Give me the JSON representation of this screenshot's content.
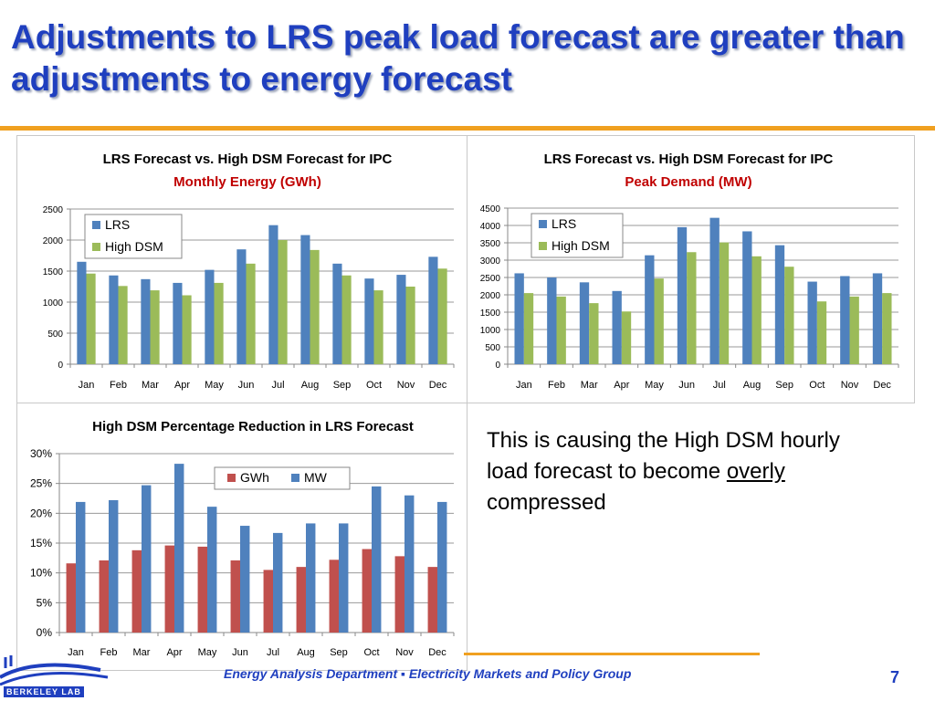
{
  "slide": {
    "title": "Adjustments to LRS peak load forecast are greater than adjustments to energy forecast",
    "body_prefix": "This is causing the High DSM hourly load forecast to become ",
    "body_underlined": "overly",
    "body_suffix": " compressed",
    "footer": "Energy Analysis Department  ▪  Electricity Markets and Policy Group",
    "page_number": "7",
    "logo_text": "BERKELEY LAB",
    "colors": {
      "title": "#1f3fbf",
      "accent": "#f0a020",
      "blue_series": "#4f81bd",
      "green_series": "#9bbb59",
      "red_series": "#c0504d"
    }
  },
  "chart_data": [
    {
      "type": "bar",
      "title": "LRS Forecast vs. High DSM Forecast for IPC",
      "subtitle": "Monthly Energy (GWh)",
      "categories": [
        "Jan",
        "Feb",
        "Mar",
        "Apr",
        "May",
        "Jun",
        "Jul",
        "Aug",
        "Sep",
        "Oct",
        "Nov",
        "Dec"
      ],
      "series": [
        {
          "name": "LRS",
          "color": "#4f81bd",
          "values": [
            1650,
            1430,
            1370,
            1310,
            1520,
            1850,
            2240,
            2080,
            1620,
            1380,
            1440,
            1730
          ]
        },
        {
          "name": "High DSM",
          "color": "#9bbb59",
          "values": [
            1460,
            1260,
            1190,
            1110,
            1310,
            1620,
            2000,
            1840,
            1430,
            1190,
            1250,
            1540
          ]
        }
      ],
      "ylim": [
        0,
        2500
      ],
      "yticks": [
        "0",
        "500",
        "1000",
        "1500",
        "2000",
        "2500"
      ],
      "legend": "top-left",
      "xlabel": "",
      "ylabel": ""
    },
    {
      "type": "bar",
      "title": "LRS Forecast vs. High DSM Forecast for IPC",
      "subtitle": "Peak Demand (MW)",
      "categories": [
        "Jan",
        "Feb",
        "Mar",
        "Apr",
        "May",
        "Jun",
        "Jul",
        "Aug",
        "Sep",
        "Oct",
        "Nov",
        "Dec"
      ],
      "series": [
        {
          "name": "LRS",
          "color": "#4f81bd",
          "values": [
            2620,
            2500,
            2360,
            2110,
            3140,
            3950,
            4220,
            3830,
            3430,
            2380,
            2540,
            2620
          ]
        },
        {
          "name": "High DSM",
          "color": "#9bbb59",
          "values": [
            2050,
            1950,
            1760,
            1520,
            2470,
            3230,
            3510,
            3110,
            2810,
            1810,
            1950,
            2050
          ]
        }
      ],
      "ylim": [
        0,
        4500
      ],
      "yticks": [
        "0",
        "500",
        "1000",
        "1500",
        "2000",
        "2500",
        "3000",
        "3500",
        "4000",
        "4500"
      ],
      "legend": "top-left",
      "xlabel": "",
      "ylabel": ""
    },
    {
      "type": "bar",
      "title": "High DSM Percentage Reduction in LRS Forecast",
      "subtitle": "",
      "categories": [
        "Jan",
        "Feb",
        "Mar",
        "Apr",
        "May",
        "Jun",
        "Jul",
        "Aug",
        "Sep",
        "Oct",
        "Nov",
        "Dec"
      ],
      "series": [
        {
          "name": "GWh",
          "color": "#c0504d",
          "values": [
            11.6,
            12.1,
            13.8,
            14.6,
            14.4,
            12.1,
            10.5,
            11.0,
            12.2,
            14.0,
            12.8,
            11.0
          ]
        },
        {
          "name": "MW",
          "color": "#4f81bd",
          "values": [
            21.9,
            22.2,
            24.7,
            28.3,
            21.1,
            17.9,
            16.7,
            18.3,
            18.3,
            24.5,
            23.0,
            21.9
          ]
        }
      ],
      "ylim": [
        0,
        30
      ],
      "yticks": [
        "0%",
        "5%",
        "10%",
        "15%",
        "20%",
        "25%",
        "30%"
      ],
      "legend": "top-right",
      "xlabel": "",
      "ylabel": ""
    }
  ]
}
